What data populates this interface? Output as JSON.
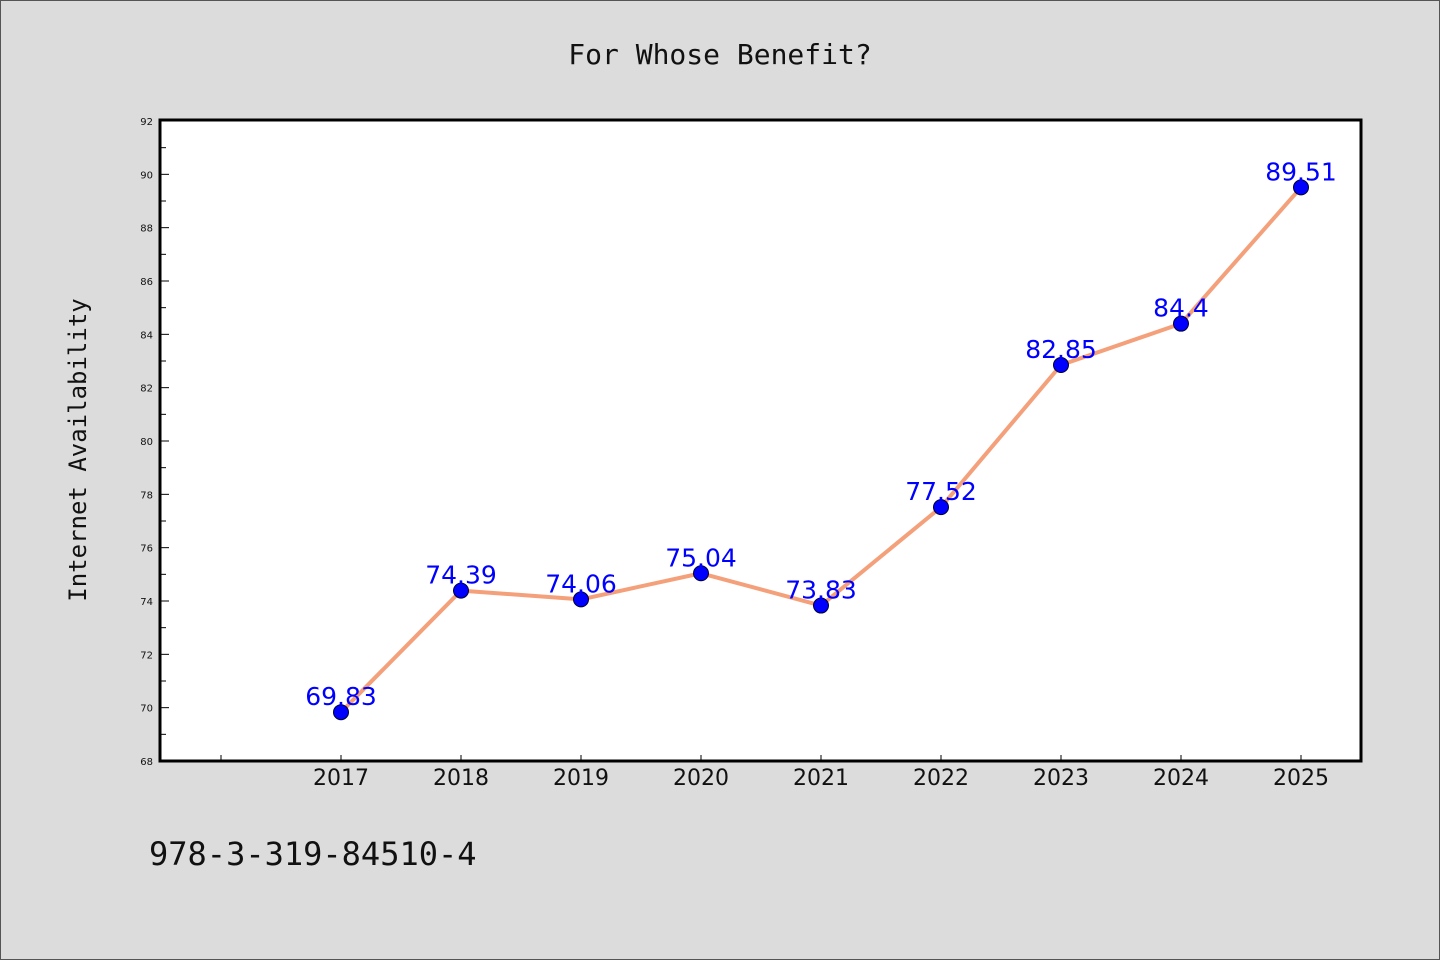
{
  "chart_data": {
    "type": "line",
    "title": "For Whose Benefit?",
    "ylabel": "Internet Availability",
    "xlabel": "",
    "categories": [
      "2017",
      "2018",
      "2019",
      "2020",
      "2021",
      "2022",
      "2023",
      "2024",
      "2025"
    ],
    "values": [
      69.83,
      74.39,
      74.06,
      75.04,
      73.83,
      77.52,
      82.85,
      84.4,
      89.51
    ],
    "data_labels": [
      "69.83",
      "74.39",
      "74.06",
      "75.04",
      "73.83",
      "77.52",
      "82.85",
      "84.4",
      "89.51"
    ],
    "ylim": [
      68,
      92
    ],
    "yticks": [
      "68",
      "70",
      "72",
      "74",
      "76",
      "78",
      "80",
      "82",
      "84",
      "86",
      "88",
      "90",
      "92"
    ],
    "grid": false,
    "legend": "none",
    "colors": {
      "line": "#f4a07a",
      "marker": "#0000ff",
      "label": "#0000ff",
      "background": "#dcdcdc",
      "plot_background": "#ffffff"
    }
  },
  "footer": {
    "isbn": "978-3-319-84510-4"
  }
}
